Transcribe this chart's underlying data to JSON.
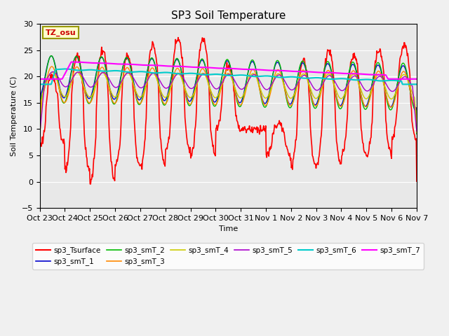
{
  "title": "SP3 Soil Temperature",
  "ylabel": "Soil Temperature (C)",
  "xlabel": "Time",
  "ylim": [
    -5,
    30
  ],
  "xlim": [
    0,
    15
  ],
  "n_days": 15,
  "background_color": "#f0f0f0",
  "plot_bg_color": "#e8e8e8",
  "tz_label": "TZ_osu",
  "tick_labels": [
    "Oct 23",
    "Oct 24",
    "Oct 25",
    "Oct 26",
    "Oct 27",
    "Oct 28",
    "Oct 29",
    "Oct 30",
    "Oct 31",
    "Nov 1",
    "Nov 2",
    "Nov 3",
    "Nov 4",
    "Nov 5",
    "Nov 6",
    "Nov 7"
  ],
  "yticks": [
    -5,
    0,
    5,
    10,
    15,
    20,
    25,
    30
  ],
  "series": {
    "sp3_Tsurface": {
      "color": "#ff0000",
      "lw": 1.2
    },
    "sp3_smT_1": {
      "color": "#0000cc",
      "lw": 1.0
    },
    "sp3_smT_2": {
      "color": "#00bb00",
      "lw": 1.0
    },
    "sp3_smT_3": {
      "color": "#ff8800",
      "lw": 1.0
    },
    "sp3_smT_4": {
      "color": "#cccc00",
      "lw": 1.0
    },
    "sp3_smT_5": {
      "color": "#aa00cc",
      "lw": 1.0
    },
    "sp3_smT_6": {
      "color": "#00cccc",
      "lw": 1.5
    },
    "sp3_smT_7": {
      "color": "#ff00ff",
      "lw": 1.5
    }
  },
  "legend_rows": [
    [
      "sp3_Tsurface",
      "sp3_smT_1",
      "sp3_smT_2",
      "sp3_smT_3",
      "sp3_smT_4",
      "sp3_smT_5"
    ],
    [
      "sp3_smT_6",
      "sp3_smT_7"
    ]
  ]
}
